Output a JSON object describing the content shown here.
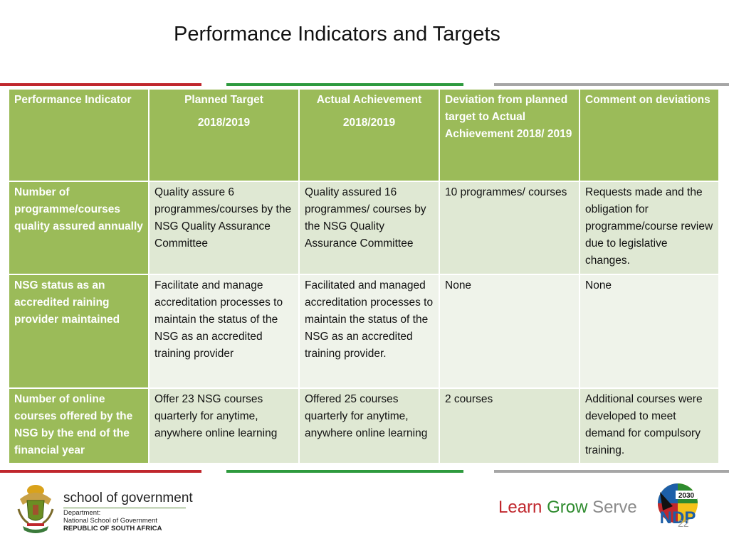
{
  "slide": {
    "title": "Performance Indicators and Targets",
    "page_number": "22"
  },
  "colors": {
    "header_green": "#9bbb59",
    "row_light_a": "#dfe8d3",
    "row_light_b": "#eff3ea",
    "rule_red": "#c0272d",
    "rule_green": "#2e9a3e",
    "rule_grey": "#a6a6a6"
  },
  "table": {
    "headers": [
      {
        "line1": "Performance Indicator",
        "line2": ""
      },
      {
        "line1": "Planned Target",
        "line2": "2018/2019"
      },
      {
        "line1": "Actual Achievement",
        "line2": "2018/2019"
      },
      {
        "line1": "Deviation from planned target to Actual Achievement 2018/ 2019",
        "line2": ""
      },
      {
        "line1": "Comment on deviations",
        "line2": ""
      }
    ],
    "rows": [
      {
        "indicator": "Number of programme/courses quality assured annually",
        "planned": "Quality assure 6 programmes/courses  by the NSG Quality Assurance Committee",
        "actual": "Quality assured 16 programmes/ courses by the NSG Quality Assurance Committee",
        "deviation": "10 programmes/ courses",
        "comment": "Requests made and the obligation for programme/course review due to legislative changes."
      },
      {
        "indicator": "NSG status as an accredited raining provider maintained",
        "planned": "Facilitate and manage accreditation processes to maintain the status of the NSG as an accredited training provider",
        "actual": "Facilitated and managed accreditation processes to maintain the status of the NSG as an accredited training provider.",
        "deviation": "None",
        "comment": "None"
      },
      {
        "indicator": "Number of online courses offered by the NSG by the end of the financial year",
        "planned": "Offer 23 NSG courses quarterly for anytime, anywhere online learning",
        "actual": "Offered 25 courses quarterly for anytime, anywhere online learning",
        "deviation": "2 courses",
        "comment": "Additional courses were developed to meet demand for compulsory training."
      }
    ]
  },
  "footer": {
    "school_name": "school of government",
    "dept_line1": "Department:",
    "dept_line2": "National School of Government",
    "dept_line3": "REPUBLIC OF SOUTH AFRICA",
    "tagline_learn": "Learn",
    "tagline_grow": "Grow",
    "tagline_serve": "Serve",
    "ndp_year": "2030",
    "ndp_text": "NDP",
    "coat_of_arms_icon": "coat-of-arms-icon",
    "ndp_icon": "ndp-2030-logo"
  }
}
